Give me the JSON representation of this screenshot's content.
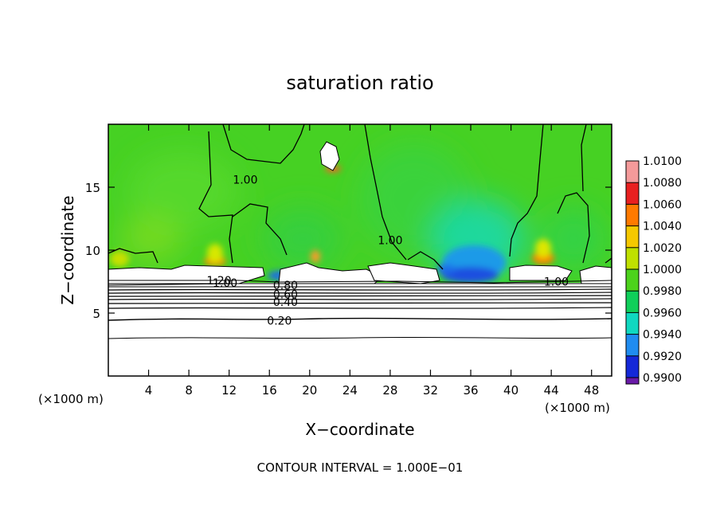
{
  "chart_data": {
    "type": "heatmap",
    "title": "saturation ratio",
    "xlabel": "X−coordinate",
    "ylabel": "Z−coordinate",
    "x_unit_left": "(×1000 m)",
    "x_unit_right": "(×1000 m)",
    "xlim": [
      0,
      50
    ],
    "ylim": [
      0,
      20
    ],
    "x_ticks": [
      4,
      8,
      12,
      16,
      20,
      24,
      28,
      32,
      36,
      40,
      44,
      48
    ],
    "x_tick_labels": [
      "4",
      "8",
      "12",
      "16",
      "20",
      "24",
      "28",
      "32",
      "36",
      "40",
      "44",
      "48"
    ],
    "y_ticks": [
      5,
      10,
      15
    ],
    "y_tick_labels": [
      "5",
      "10",
      "15"
    ],
    "colorbar": {
      "min": 0.99,
      "max": 1.01,
      "labels": [
        "1.0100",
        "1.0080",
        "1.0060",
        "1.0040",
        "1.0020",
        "1.0000",
        "0.9980",
        "0.9960",
        "0.9940",
        "0.9920",
        "0.9900"
      ],
      "colors": [
        "#f49a9a",
        "#e82020",
        "#ff7a00",
        "#f5c800",
        "#bfe000",
        "#4cd21c",
        "#10cf5a",
        "#10d8c0",
        "#1f8cf0",
        "#1428d8",
        "#6a1aa8"
      ]
    },
    "contour_levels_labeled": [
      {
        "label": "1.00",
        "x": 13.6,
        "y": 15.6
      },
      {
        "label": "1.00",
        "x": 28.0,
        "y": 10.8
      },
      {
        "label": "1.00",
        "x": 44.5,
        "y": 7.5
      },
      {
        "label": "1.20",
        "x": 11.0,
        "y": 7.6
      },
      {
        "label": "1.00",
        "x": 11.6,
        "y": 7.4
      },
      {
        "label": "0.80",
        "x": 17.6,
        "y": 7.2
      },
      {
        "label": "0.60",
        "x": 17.6,
        "y": 6.5
      },
      {
        "label": "0.40",
        "x": 17.6,
        "y": 5.9
      },
      {
        "label": "0.20",
        "x": 17.0,
        "y": 4.4
      }
    ],
    "footer": "CONTOUR INTERVAL = 1.000E−01"
  }
}
